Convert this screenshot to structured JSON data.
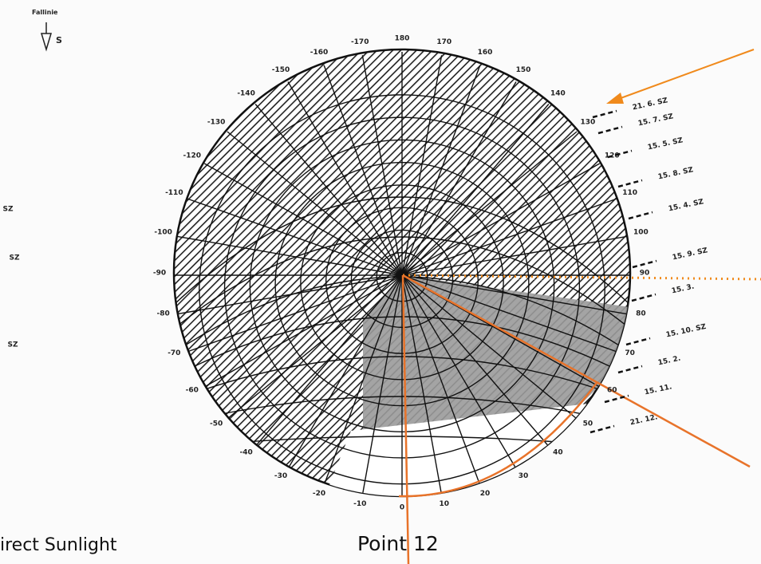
{
  "compass": {
    "label": "Fallinie",
    "direction": "S"
  },
  "azimuth_labels": [
    -170,
    -160,
    -150,
    -140,
    -130,
    -120,
    -110,
    -100,
    -90,
    -80,
    -70,
    -60,
    -50,
    -40,
    -30,
    -20,
    -10,
    0,
    10,
    20,
    30,
    40,
    50,
    60,
    70,
    80,
    90,
    100,
    110,
    120,
    130,
    140,
    150,
    160,
    170,
    180
  ],
  "date_labels": [
    "21.   6.   SZ",
    "15.   7.   SZ",
    "15.   5.   SZ",
    "15.   8.   SZ",
    "15.   4.   SZ",
    "15.   9.   SZ",
    "15.   3.",
    "15.   10.   SZ",
    "15.   2.",
    "15.   11.",
    "21.   12."
  ],
  "left_labels": [
    "SZ",
    "SZ",
    "SZ"
  ],
  "caption": "Point 12",
  "footer": "irect Sunlight"
}
